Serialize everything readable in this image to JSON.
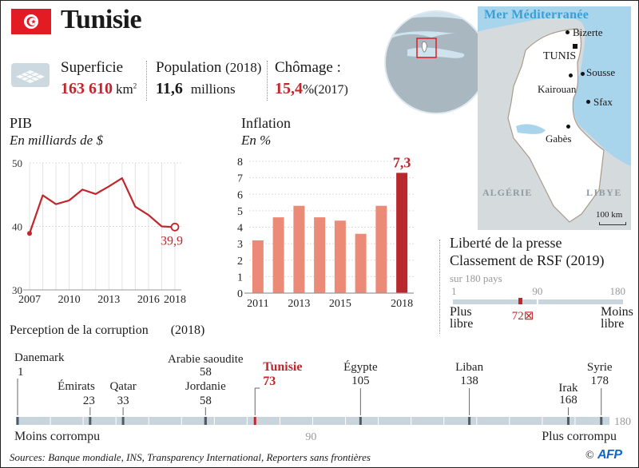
{
  "header": {
    "country": "Tunisie",
    "flag_icon": "tunisia-flag-icon"
  },
  "stats": {
    "area": {
      "label": "Superficie",
      "value": "163 610",
      "unit": "km",
      "unit_sup": "2"
    },
    "population": {
      "label": "Population",
      "year": "(2018)",
      "value": "11,6",
      "unit": "millions"
    },
    "unemployment": {
      "label": "Chômage :",
      "value": "15,4",
      "unit": "%",
      "year": "(2017)"
    }
  },
  "map": {
    "sea_label": "Mer Méditerranée",
    "cities": [
      {
        "name": "Bizerte",
        "type": "city"
      },
      {
        "name": "TUNIS",
        "type": "capital"
      },
      {
        "name": "Sousse",
        "type": "city"
      },
      {
        "name": "Kairouan",
        "type": "city"
      },
      {
        "name": "Sfax",
        "type": "city"
      },
      {
        "name": "Gabès",
        "type": "city"
      }
    ],
    "neighbors": [
      "ALGÉRIE",
      "LIBYE"
    ],
    "scale_label": "100 km"
  },
  "chart_data": [
    {
      "type": "line",
      "title": "PIB",
      "subtitle": "En milliards de $",
      "x": [
        2007,
        2008,
        2009,
        2010,
        2011,
        2012,
        2013,
        2014,
        2015,
        2016,
        2017,
        2018
      ],
      "values": [
        38.9,
        44.9,
        43.5,
        44.1,
        45.8,
        45.1,
        46.3,
        47.6,
        43.1,
        41.8,
        40.0,
        39.9
      ],
      "xticks": [
        "2007",
        "2010",
        "2013",
        "2016",
        "2018"
      ],
      "yticks": [
        "30",
        "40",
        "50"
      ],
      "ylim": [
        30,
        50
      ],
      "annotation": "39,9",
      "grid": true,
      "color": "#c0272d"
    },
    {
      "type": "bar",
      "title": "Inflation",
      "subtitle": "En %",
      "categories": [
        "2011",
        "2012",
        "2013",
        "2014",
        "2015",
        "2016",
        "2017",
        "2018"
      ],
      "values": [
        3.2,
        4.6,
        5.3,
        4.6,
        4.4,
        3.6,
        5.3,
        7.3
      ],
      "xticks": [
        "2011",
        "2013",
        "2015",
        "2018"
      ],
      "yticks": [
        "0",
        "1",
        "2",
        "3",
        "4",
        "5",
        "6",
        "7",
        "8"
      ],
      "ylim": [
        0,
        8
      ],
      "annotation": "7,3",
      "grid": true,
      "bar_color": "#ec8a78",
      "highlight_color": "#b8282c"
    },
    {
      "type": "bar",
      "title": "Liberté de la presse",
      "subtitle": "Classement de RSF (2019)",
      "note": "sur 180 pays",
      "scale_labels": [
        "1",
        "90",
        "180"
      ],
      "value": 72,
      "value_label": "72⊠",
      "range": [
        1,
        180
      ],
      "left_label": "Plus libre",
      "right_label": "Moins libre"
    },
    {
      "type": "scatter",
      "title": "Perception de la corruption",
      "year": "(2018)",
      "range": [
        1,
        180
      ],
      "mid_label": "90",
      "end_label": "180",
      "left_label": "Moins corrompu",
      "right_label": "Plus corrompu",
      "points": [
        {
          "country": "Danemark",
          "rank": 1
        },
        {
          "country": "Émirats",
          "rank": 23
        },
        {
          "country": "Qatar",
          "rank": 33
        },
        {
          "country": "Arabie saoudite",
          "rank": 58
        },
        {
          "country": "Jordanie",
          "rank": 58
        },
        {
          "country": "Tunisie",
          "rank": 73,
          "highlight": true
        },
        {
          "country": "Égypte",
          "rank": 105
        },
        {
          "country": "Liban",
          "rank": 138
        },
        {
          "country": "Irak",
          "rank": 168
        },
        {
          "country": "Syrie",
          "rank": 178
        }
      ]
    }
  ],
  "footer": {
    "sources": "Sources: Banque mondiale, INS, Transparency International, Reporters sans frontières",
    "credit": "©",
    "logo": "AFP"
  }
}
